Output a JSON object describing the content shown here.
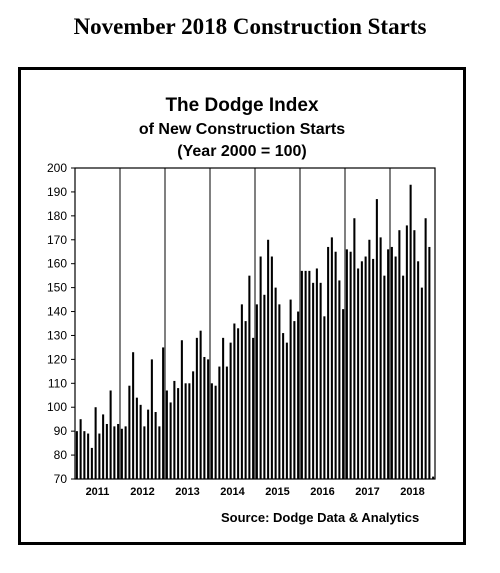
{
  "header": {
    "title": "November 2018 Construction Starts"
  },
  "chart_data": {
    "type": "bar",
    "title": "The Dodge Index",
    "subtitle": "of New Construction Starts",
    "note": "(Year 2000 = 100)",
    "source": "Source:  Dodge Data & Analytics",
    "ylim": [
      70,
      200
    ],
    "yticks": [
      70,
      80,
      90,
      100,
      110,
      120,
      130,
      140,
      150,
      160,
      170,
      180,
      190,
      200
    ],
    "grid": "vertical",
    "bar_color": "#000000",
    "years": [
      "2011",
      "2012",
      "2013",
      "2014",
      "2015",
      "2016",
      "2017",
      "2018"
    ],
    "start": "2011-01",
    "values": [
      90,
      95,
      90,
      89,
      83,
      100,
      89,
      97,
      93,
      107,
      92,
      93,
      91,
      92,
      109,
      123,
      104,
      101,
      92,
      99,
      120,
      98,
      92,
      125,
      107,
      102,
      111,
      108,
      128,
      110,
      110,
      115,
      129,
      132,
      121,
      120,
      110,
      109,
      117,
      129,
      117,
      127,
      135,
      133,
      143,
      136,
      155,
      129,
      143,
      163,
      147,
      170,
      163,
      150,
      143,
      131,
      127,
      145,
      136,
      140,
      157,
      157,
      157,
      152,
      158,
      152,
      138,
      167,
      171,
      165,
      153,
      141,
      166,
      165,
      179,
      158,
      161,
      163,
      170,
      162,
      187,
      171,
      155,
      166,
      167,
      163,
      174,
      155,
      176,
      193,
      174,
      161,
      150,
      179,
      167,
      71
    ]
  }
}
